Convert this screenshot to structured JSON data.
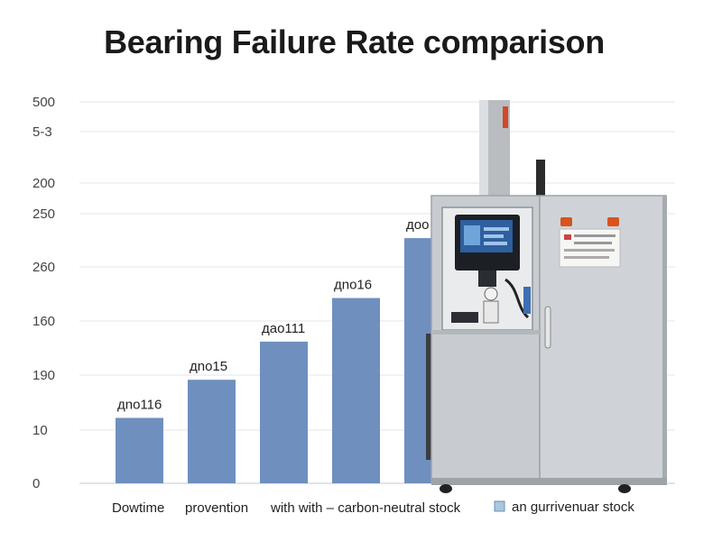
{
  "chart_data": {
    "type": "bar",
    "title": "Bearing Failure Rate comparison",
    "xlabel": "",
    "ylabel": "",
    "y_tick_labels": [
      "0",
      "10",
      "190",
      "160",
      "260",
      "250",
      "200",
      "5-3",
      "500"
    ],
    "categories": [
      "Dowtime",
      "provention",
      "with with – carbon-neutral stock",
      "",
      ""
    ],
    "series": [
      {
        "name": "",
        "color": "#6f8fbf",
        "values": [
          1.2,
          1.9,
          2.6,
          3.4,
          4.5
        ],
        "data_labels": [
          "дno116",
          "дno15",
          "дao111",
          "дno16",
          "дoo"
        ]
      }
    ],
    "ylim": [
      0,
      7
    ],
    "grid": true,
    "legend": {
      "position": "bottom-right",
      "entries": [
        "an gurrivenuar stock"
      ],
      "swatch_color": "#a9c7df"
    },
    "overlay_image": "industrial-control-cabinet"
  }
}
